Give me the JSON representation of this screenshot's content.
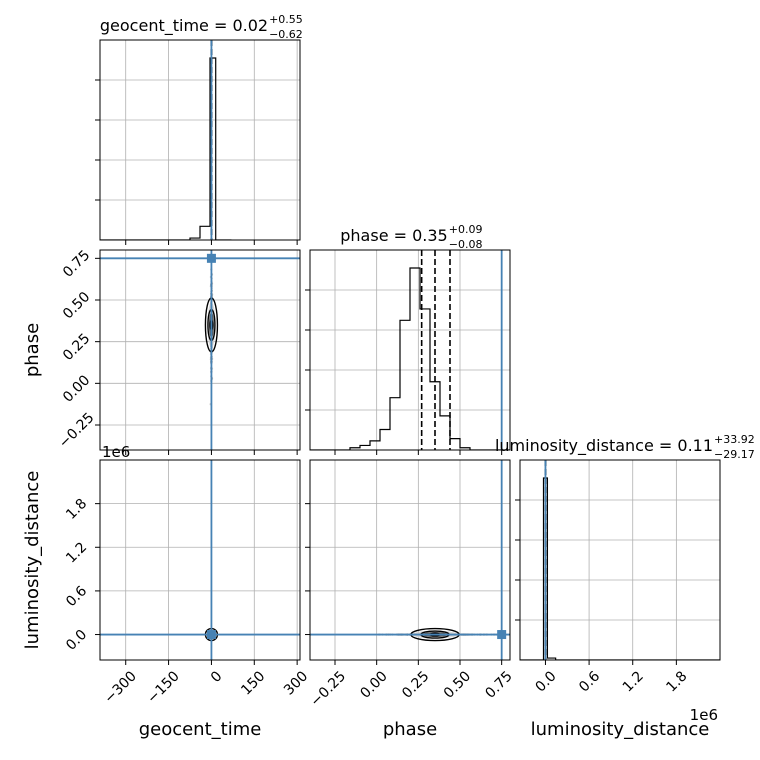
{
  "chart_data": {
    "type": "corner",
    "parameters": [
      "geocent_time",
      "phase",
      "luminosity_distance"
    ],
    "axis_labels": [
      "geocent_time",
      "phase",
      "luminosity_distance"
    ],
    "ranges": {
      "geocent_time": [
        -390,
        310
      ],
      "phase": [
        -0.4,
        0.8
      ],
      "luminosity_distance": [
        -350000,
        2400000
      ]
    },
    "ticks": {
      "geocent_time": {
        "values": [
          -300,
          -150,
          0,
          150,
          300
        ],
        "labels": [
          "−300",
          "−150",
          "0",
          "150",
          "300"
        ]
      },
      "phase": {
        "values": [
          -0.25,
          0.0,
          0.25,
          0.5,
          0.75
        ],
        "labels": [
          "−0.25",
          "0.00",
          "0.25",
          "0.50",
          "0.75"
        ]
      },
      "luminosity_distance": {
        "values": [
          0,
          600000,
          1200000,
          1800000
        ],
        "labels": [
          "0.0",
          "0.6",
          "1.2",
          "1.8"
        ],
        "offset_label": "1e6"
      }
    },
    "titles": [
      {
        "param": "geocent_time",
        "name": "geocent_time",
        "median": "0.02",
        "plus": "+0.55",
        "minus": "−0.62"
      },
      {
        "param": "phase",
        "name": "phase",
        "median": "0.35",
        "plus": "+0.09",
        "minus": "−0.08"
      },
      {
        "param": "luminosity_distance",
        "name": "luminosity_distance",
        "median": "0.11",
        "plus": "+33.92",
        "minus": "−29.17"
      }
    ],
    "truths": {
      "geocent_time": 0,
      "phase": 0.75,
      "luminosity_distance": 0
    },
    "quantiles": {
      "geocent_time": [
        -0.6,
        0.02,
        0.57
      ],
      "phase": [
        0.27,
        0.35,
        0.44
      ],
      "luminosity_distance": [
        -29.06,
        0.11,
        34.03
      ]
    },
    "histograms": {
      "geocent_time": {
        "edges": [
          -390,
          -355,
          -320,
          -285,
          -250,
          -215,
          -180,
          -145,
          -110,
          -75,
          -40,
          -5,
          15,
          35,
          70
        ],
        "counts": [
          0,
          0,
          0,
          0,
          0,
          0,
          0,
          0,
          0,
          0.01,
          0.07,
          0.93,
          0,
          0
        ]
      },
      "phase": {
        "edges": [
          -0.4,
          -0.34,
          -0.28,
          -0.22,
          -0.16,
          -0.1,
          -0.04,
          0.02,
          0.08,
          0.14,
          0.2,
          0.26,
          0.32,
          0.38,
          0.44,
          0.5,
          0.56,
          0.62,
          0.68,
          0.74,
          0.8
        ],
        "counts": [
          0,
          0,
          0,
          0,
          0.01,
          0.02,
          0.04,
          0.09,
          0.23,
          0.57,
          0.8,
          0.62,
          0.3,
          0.15,
          0.05,
          0.01,
          0,
          0,
          0,
          0
        ]
      },
      "luminosity_distance": {
        "edges": [
          -350000,
          -27000,
          27000,
          140000,
          2400000
        ],
        "counts": [
          0,
          0.94,
          0.01,
          0
        ]
      }
    },
    "grid": true
  }
}
